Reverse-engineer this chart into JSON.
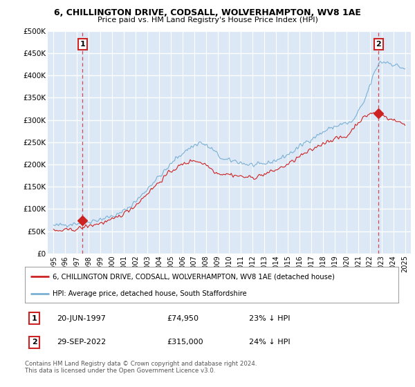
{
  "title1": "6, CHILLINGTON DRIVE, CODSALL, WOLVERHAMPTON, WV8 1AE",
  "title2": "Price paid vs. HM Land Registry's House Price Index (HPI)",
  "ylabel_ticks": [
    "£0",
    "£50K",
    "£100K",
    "£150K",
    "£200K",
    "£250K",
    "£300K",
    "£350K",
    "£400K",
    "£450K",
    "£500K"
  ],
  "ytick_values": [
    0,
    50000,
    100000,
    150000,
    200000,
    250000,
    300000,
    350000,
    400000,
    450000,
    500000
  ],
  "ylim": [
    0,
    500000
  ],
  "xlim_start": 1994.5,
  "xlim_end": 2025.5,
  "hpi_color": "#7ab0d4",
  "price_color": "#cc2222",
  "marker_color": "#cc2222",
  "bg_color": "#dce8f5",
  "grid_color": "#ffffff",
  "point1_x": 1997.47,
  "point1_y": 74950,
  "point2_x": 2022.75,
  "point2_y": 315000,
  "point1_label": "1",
  "point2_label": "2",
  "legend_line1": "6, CHILLINGTON DRIVE, CODSALL, WOLVERHAMPTON, WV8 1AE (detached house)",
  "legend_line2": "HPI: Average price, detached house, South Staffordshire",
  "table_row1": [
    "1",
    "20-JUN-1997",
    "£74,950",
    "23% ↓ HPI"
  ],
  "table_row2": [
    "2",
    "29-SEP-2022",
    "£315,000",
    "24% ↓ HPI"
  ],
  "footnote": "Contains HM Land Registry data © Crown copyright and database right 2024.\nThis data is licensed under the Open Government Licence v3.0.",
  "xtick_years": [
    1995,
    1996,
    1997,
    1998,
    1999,
    2000,
    2001,
    2002,
    2003,
    2004,
    2005,
    2006,
    2007,
    2008,
    2009,
    2010,
    2011,
    2012,
    2013,
    2014,
    2015,
    2016,
    2017,
    2018,
    2019,
    2020,
    2021,
    2022,
    2023,
    2024,
    2025
  ]
}
